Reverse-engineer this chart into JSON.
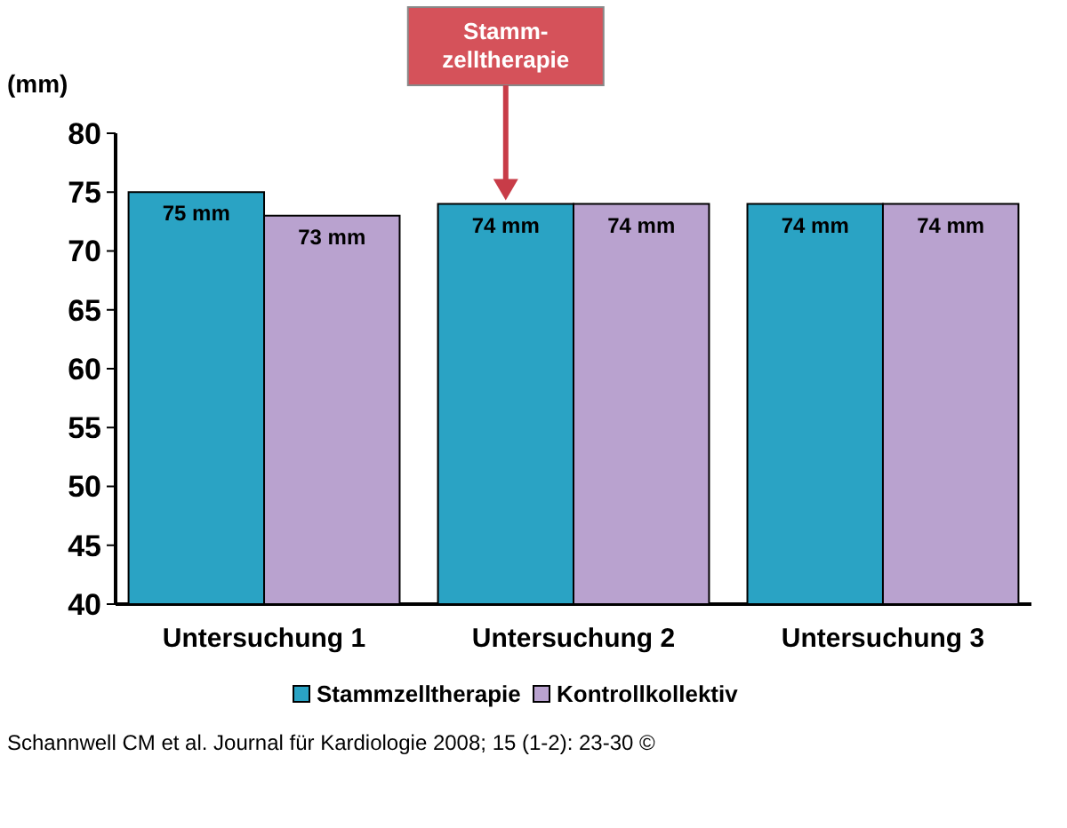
{
  "chart_data": {
    "type": "bar",
    "ylabel": "(mm)",
    "categories": [
      "Untersuchung 1",
      "Untersuchung 2",
      "Untersuchung 3"
    ],
    "series": [
      {
        "name": "Stammzelltherapie",
        "color": "#2aa3c4",
        "values": [
          75,
          74,
          74
        ],
        "value_labels": [
          "75 mm",
          "74 mm",
          "74 mm"
        ]
      },
      {
        "name": "Kontrollkollektiv",
        "color": "#b9a2cf",
        "values": [
          73,
          74,
          74
        ],
        "value_labels": [
          "73 mm",
          "74 mm",
          "74 mm"
        ]
      }
    ],
    "ylim": [
      40,
      80
    ],
    "yticks": [
      40,
      45,
      50,
      55,
      60,
      65,
      70,
      75,
      80
    ],
    "grid": false,
    "legend": "bottom",
    "annotations": [
      "Stamm-\nzelltherapie",
      "Schannwell CM et al. Journal für Kardiologie 2008; 15 (1-2): 23-30 ©"
    ]
  }
}
